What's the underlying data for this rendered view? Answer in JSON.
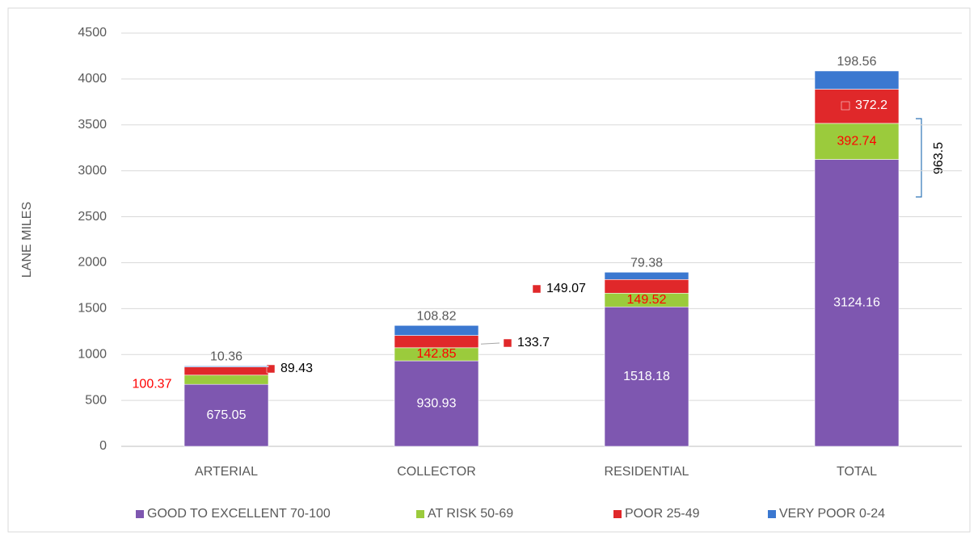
{
  "chart_data": {
    "type": "stacked_bar",
    "y_label": "LANE MILES",
    "categories": [
      "ARTERIAL",
      "COLLECTOR",
      "RESIDENTIAL",
      "TOTAL"
    ],
    "series": [
      {
        "name": "GOOD TO EXCELLENT 70-100",
        "color": "#7e57b0",
        "values": [
          675.05,
          930.93,
          1518.18,
          3124.16
        ]
      },
      {
        "name": "AT RISK 50-69",
        "color": "#9bcb3c",
        "values": [
          100.37,
          142.85,
          149.52,
          392.74
        ]
      },
      {
        "name": "POOR 25-49",
        "color": "#e0282a",
        "values": [
          89.43,
          133.7,
          149.07,
          372.2
        ]
      },
      {
        "name": "VERY POOR 0-24",
        "color": "#3b78d0",
        "values": [
          10.36,
          108.82,
          79.38,
          198.56
        ]
      }
    ],
    "annotation": "963.5",
    "ylim": [
      0,
      4500
    ],
    "yticks": [
      0,
      500,
      1000,
      1500,
      2000,
      2500,
      3000,
      3500,
      4000,
      4500
    ],
    "grid": true,
    "legend": "bottom"
  }
}
